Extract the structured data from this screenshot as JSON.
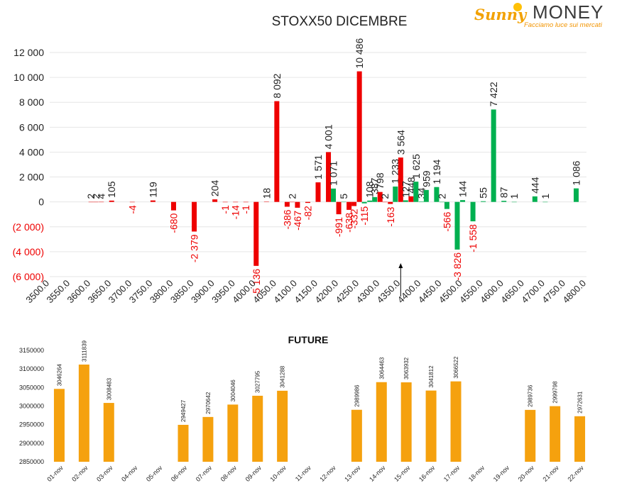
{
  "logo": {
    "name_a": "Sunny",
    "name_b": "MONEY",
    "tagline": "Facciamo luce sui mercati"
  },
  "chart_data": [
    {
      "type": "bar",
      "title": "STOXX50 DICEMBRE",
      "xlabel": "",
      "ylabel": "",
      "ylim": [
        -6000,
        12000
      ],
      "y_ticks": [
        12000,
        10000,
        8000,
        6000,
        4000,
        2000,
        0,
        -2000,
        -4000,
        -6000
      ],
      "y_tick_labels": [
        "12 000",
        "10 000",
        "8 000",
        "6 000",
        "4 000",
        "2 000",
        "0",
        "(2 000)",
        "(4 000)",
        "(6 000)"
      ],
      "categories": [
        "3500.0",
        "3550.0",
        "3600.0",
        "3650.0",
        "3700.0",
        "3750.0",
        "3800.0",
        "3850.0",
        "3900.0",
        "3950.0",
        "4000.0",
        "4050.0",
        "4100.0",
        "4150.0",
        "4200.0",
        "4250.0",
        "4300.0",
        "4350.0",
        "4400.0",
        "4450.0",
        "4500.0",
        "4550.0",
        "4600.0",
        "4650.0",
        "4700.0",
        "4750.0",
        "4800.0"
      ],
      "grid": true,
      "legend": "none",
      "colors": {
        "positive_red": "#ee0000",
        "positive_green": "#00b050",
        "negative_label": "#ee0000",
        "label": "#222222"
      },
      "series": [
        {
          "values": [
            {
              "strike": 3600,
              "value": 2,
              "color": "red",
              "label": "2"
            },
            {
              "strike": 3612,
              "value": 2,
              "color": "red",
              "label": "2"
            },
            {
              "strike": 3625,
              "value": 4,
              "color": "red",
              "label": "4"
            },
            {
              "strike": 3650,
              "value": 105,
              "color": "red",
              "label": "105"
            },
            {
              "strike": 3700,
              "value": -4,
              "color": "red",
              "label": "-4"
            },
            {
              "strike": 3750,
              "value": 119,
              "color": "red",
              "label": "119"
            },
            {
              "strike": 3800,
              "value": -680,
              "color": "red",
              "label": "-680"
            },
            {
              "strike": 3850,
              "value": -2379,
              "color": "red",
              "label": "-2 379"
            },
            {
              "strike": 3900,
              "value": 204,
              "color": "red",
              "label": "204"
            },
            {
              "strike": 3925,
              "value": -1,
              "color": "red",
              "label": "-1"
            },
            {
              "strike": 3950,
              "value": -14,
              "color": "red",
              "label": "-14"
            },
            {
              "strike": 3975,
              "value": -1,
              "color": "red",
              "label": "-1"
            },
            {
              "strike": 4000,
              "value": -5136,
              "color": "red",
              "label": "-5 136"
            },
            {
              "strike": 4025,
              "value": 18,
              "color": "red",
              "label": "18"
            },
            {
              "strike": 4050,
              "value": 8092,
              "color": "red",
              "label": "8 092"
            },
            {
              "strike": 4075,
              "value": -386,
              "color": "red",
              "label": "-386"
            },
            {
              "strike": 4087,
              "value": 2,
              "color": "red",
              "label": "2"
            },
            {
              "strike": 4100,
              "value": -467,
              "color": "red",
              "label": "-467"
            },
            {
              "strike": 4125,
              "value": -82,
              "color": "red",
              "label": "-82"
            },
            {
              "strike": 4150,
              "value": 1571,
              "color": "red",
              "label": "1 571"
            },
            {
              "strike": 4175,
              "value": 4001,
              "color": "red",
              "label": "4 001"
            },
            {
              "strike": 4187,
              "value": 1071,
              "color": "green",
              "label": "1 071"
            },
            {
              "strike": 4200,
              "value": -991,
              "color": "red",
              "label": "-991"
            },
            {
              "strike": 4212,
              "value": 5,
              "color": "green",
              "label": "5"
            },
            {
              "strike": 4225,
              "value": -638,
              "color": "red",
              "label": "-638"
            },
            {
              "strike": 4237,
              "value": -332,
              "color": "red",
              "label": "-332"
            },
            {
              "strike": 4250,
              "value": 10486,
              "color": "red",
              "label": "10 486"
            },
            {
              "strike": 4262,
              "value": -115,
              "color": "green",
              "label": "-115"
            },
            {
              "strike": 4275,
              "value": 108,
              "color": "green",
              "label": "108"
            },
            {
              "strike": 4287,
              "value": 387,
              "color": "green",
              "label": "387"
            },
            {
              "strike": 4300,
              "value": 798,
              "color": "red",
              "label": "798"
            },
            {
              "strike": 4312,
              "value": 2,
              "color": "red",
              "label": "2"
            },
            {
              "strike": 4325,
              "value": -163,
              "color": "red",
              "label": "-163"
            },
            {
              "strike": 4337,
              "value": 1233,
              "color": "green",
              "label": "1 233"
            },
            {
              "strike": 4350,
              "value": 3564,
              "color": "red",
              "label": "3 564"
            },
            {
              "strike": 4362,
              "value": 127,
              "color": "green",
              "label": "127"
            },
            {
              "strike": 4375,
              "value": 448,
              "color": "red",
              "label": "448"
            },
            {
              "strike": 4387,
              "value": 1625,
              "color": "green",
              "label": "1 625"
            },
            {
              "strike": 4400,
              "value": 34,
              "color": "green",
              "label": "34"
            },
            {
              "strike": 4412,
              "value": 959,
              "color": "green",
              "label": "959"
            },
            {
              "strike": 4437,
              "value": 1194,
              "color": "green",
              "label": "1 194"
            },
            {
              "strike": 4450,
              "value": 2,
              "color": "green",
              "label": "2"
            },
            {
              "strike": 4462,
              "value": -566,
              "color": "green",
              "label": "-566"
            },
            {
              "strike": 4487,
              "value": -3826,
              "color": "green",
              "label": "-3 826"
            },
            {
              "strike": 4500,
              "value": 144,
              "color": "green",
              "label": "144"
            },
            {
              "strike": 4525,
              "value": -1558,
              "color": "green",
              "label": "-1 558"
            },
            {
              "strike": 4550,
              "value": 55,
              "color": "green",
              "label": "55"
            },
            {
              "strike": 4575,
              "value": 7422,
              "color": "green",
              "label": "7 422"
            },
            {
              "strike": 4600,
              "value": 87,
              "color": "green",
              "label": "87"
            },
            {
              "strike": 4625,
              "value": 1,
              "color": "green",
              "label": "1"
            },
            {
              "strike": 4675,
              "value": 444,
              "color": "green",
              "label": "444"
            },
            {
              "strike": 4700,
              "value": 1,
              "color": "green",
              "label": "1"
            },
            {
              "strike": 4775,
              "value": 1086,
              "color": "green",
              "label": "1 086"
            }
          ]
        }
      ],
      "annotations": [
        {
          "type": "arrow",
          "strike": 4350
        }
      ]
    },
    {
      "type": "bar",
      "title": "FUTURE",
      "xlabel": "",
      "ylabel": "",
      "ylim": [
        2850000,
        3150000
      ],
      "y_ticks": [
        3150000,
        3100000,
        3050000,
        3000000,
        2950000,
        2900000,
        2850000
      ],
      "y_tick_labels": [
        "3150000",
        "3100000",
        "3050000",
        "3000000",
        "2950000",
        "2900000",
        "2850000"
      ],
      "categories": [
        "01-nov",
        "02-nov",
        "03-nov",
        "04-nov",
        "05-nov",
        "06-nov",
        "07-nov",
        "08-nov",
        "09-nov",
        "10-nov",
        "11-nov",
        "12-nov",
        "13-nov",
        "14-nov",
        "15-nov",
        "16-nov",
        "17-nov",
        "18-nov",
        "19-nov",
        "20-nov",
        "21-nov",
        "22-nov"
      ],
      "values": [
        3046264,
        3111839,
        3008483,
        null,
        null,
        2949427,
        2970642,
        3004046,
        3027795,
        3041288,
        null,
        null,
        2989986,
        3064463,
        3063932,
        3041812,
        3066522,
        null,
        null,
        2989736,
        2999798,
        2972631
      ],
      "colors": {
        "bar": "#f5a10e"
      },
      "grid": false,
      "legend": "none"
    }
  ]
}
